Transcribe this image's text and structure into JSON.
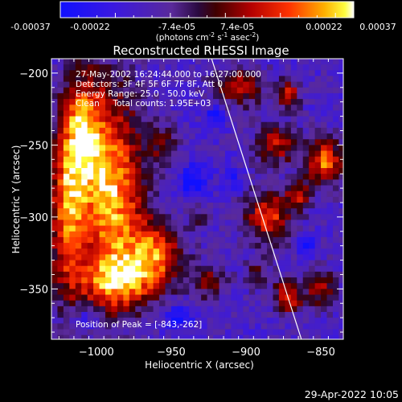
{
  "colorbar": {
    "ticks": [
      "-0.00037",
      "-0.00022",
      "-7.4e-05",
      "7.4e-05",
      "0.00022",
      "0.00037"
    ],
    "units": [
      "(photons cm",
      "-2",
      " s",
      "-1",
      " asec",
      "-2",
      ")"
    ]
  },
  "chart_data": {
    "type": "heatmap",
    "title": "Reconstructed RHESSI Image",
    "xlabel": "Heliocentric X (arcsec)",
    "ylabel": "Heliocentric Y (arcsec)",
    "xlim": [
      -1030,
      -835
    ],
    "ylim": [
      -385,
      -190
    ],
    "x_ticks": [
      -1000,
      -950,
      -900,
      -850
    ],
    "y_ticks": [
      -200,
      -250,
      -300,
      -350
    ],
    "x_tick_labels": [
      "−1000",
      "−950",
      "−900",
      "−850"
    ],
    "y_tick_labels": [
      "−200",
      "−250",
      "−300",
      "−350"
    ],
    "colormap": "rainbow-blue-purple-red-yellow-white",
    "vmin": -0.00037,
    "vmax": 0.00037,
    "limb_line": {
      "from": [
        -923,
        -190
      ],
      "to": [
        -863,
        -385
      ]
    },
    "annotations": [
      "27-May-2002 16:24:44.000 to 16:27:00.000",
      "Detectors: 3F 4F 5F 6F 7F 8F, Att 0",
      "Energy Range: 25.0 - 50.0 keV",
      "Clean     Total counts: 1.95E+03"
    ],
    "peak_label": "Position of Peak = [-843,-262]",
    "peak_position": [
      -843,
      -262
    ]
  },
  "footer": {
    "timestamp": "29-Apr-2022 10:05"
  }
}
